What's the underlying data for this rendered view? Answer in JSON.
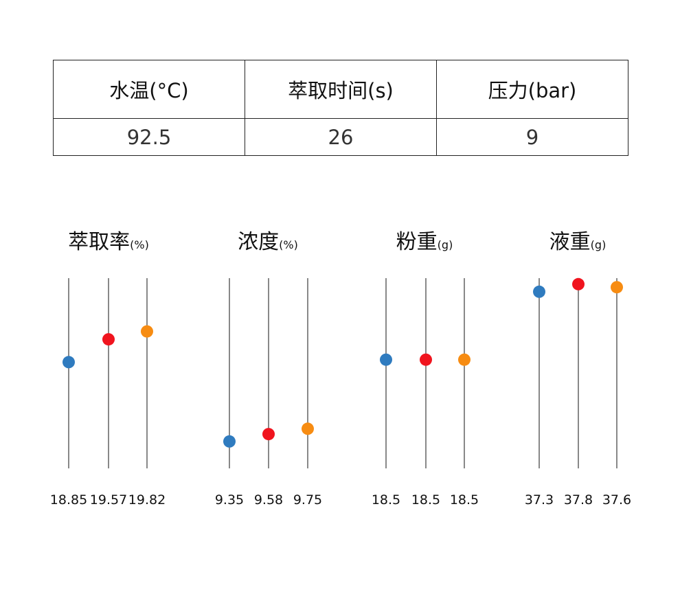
{
  "params_table": {
    "headers": [
      "水温(°C)",
      "萃取时间(s)",
      "压力(bar)"
    ],
    "values": [
      "92.5",
      "26",
      "9"
    ]
  },
  "chart_data": [
    {
      "type": "scatter",
      "title": "萃取率",
      "unit": "(%)",
      "labels": [
        "18.85",
        "19.57",
        "19.82"
      ],
      "values": [
        18.85,
        19.57,
        19.82
      ],
      "colors": [
        "#2f7bbf",
        "#f0141e",
        "#f78c12"
      ],
      "ylim": [
        15.5,
        21.5
      ]
    },
    {
      "type": "scatter",
      "title": "浓度",
      "unit": "(%)",
      "labels": [
        "9.35",
        "9.58",
        "9.75"
      ],
      "values": [
        9.35,
        9.58,
        9.75
      ],
      "colors": [
        "#2f7bbf",
        "#f0141e",
        "#f78c12"
      ],
      "ylim": [
        8.5,
        14.5
      ]
    },
    {
      "type": "scatter",
      "title": "粉重",
      "unit": "(g)",
      "labels": [
        "18.5",
        "18.5",
        "18.5"
      ],
      "values": [
        18.5,
        18.5,
        18.5
      ],
      "colors": [
        "#2f7bbf",
        "#f0141e",
        "#f78c12"
      ],
      "ylim": [
        16.5,
        20
      ]
    },
    {
      "type": "scatter",
      "title": "液重",
      "unit": "(g)",
      "labels": [
        "37.3",
        "37.8",
        "37.6"
      ],
      "values": [
        37.3,
        37.8,
        37.6
      ],
      "colors": [
        "#2f7bbf",
        "#f0141e",
        "#f78c12"
      ],
      "ylim": [
        25.6,
        38.2
      ]
    }
  ]
}
